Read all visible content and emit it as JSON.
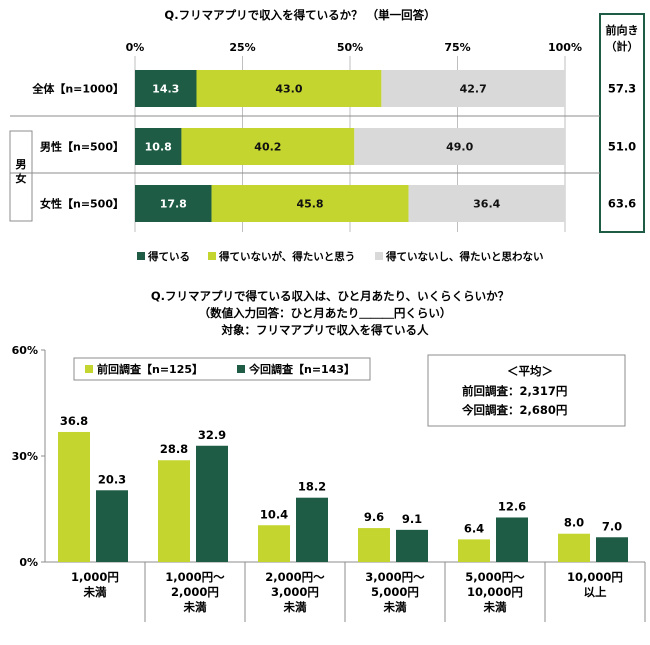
{
  "colors": {
    "dark_green": "#1f5c45",
    "lime": "#c3d52e",
    "light_gray": "#d9d9d9",
    "frame_green": "#1f5c45"
  },
  "top": {
    "question": "Q.フリマアプリで収入を得ているか？ （単一回答）",
    "axis_ticks": [
      "0%",
      "25%",
      "50%",
      "75%",
      "100%"
    ],
    "side_header_line1": "前向き",
    "side_header_line2": "（計）",
    "group_label": "男女",
    "rows": [
      {
        "label": "全体【n=1000】",
        "total": "57.3"
      },
      {
        "label": "男性【n=500】",
        "total": "51.0"
      },
      {
        "label": "女性【n=500】",
        "total": "63.6"
      }
    ],
    "legend": [
      "得ている",
      "得ていないが、得たいと思う",
      "得ていないし、得たいと思わない"
    ]
  },
  "bottom": {
    "title_line1": "Q.フリマアプリで得ている収入は、ひと月あたり、いくらくらいか？",
    "title_line2": "（数値入力回答：ひと月あたり＿＿＿円くらい）",
    "title_line3": "対象：フリマアプリで収入を得ている人",
    "y_ticks": [
      "60%",
      "30%",
      "0%"
    ],
    "legend": [
      "前回調査【n=125】",
      "今回調査【n=143】"
    ],
    "avg_title": "＜平均＞",
    "avg_prev": "前回調査：2,317円",
    "avg_curr": "今回調査：2,680円",
    "categories": [
      [
        "1,000円",
        "未満"
      ],
      [
        "1,000円～",
        "2,000円",
        "未満"
      ],
      [
        "2,000円～",
        "3,000円",
        "未満"
      ],
      [
        "3,000円～",
        "5,000円",
        "未満"
      ],
      [
        "5,000円～",
        "10,000円",
        "未満"
      ],
      [
        "10,000円",
        "以上"
      ]
    ]
  },
  "chart_data": [
    {
      "type": "bar",
      "orientation": "horizontal-stacked",
      "title": "Q.フリマアプリで収入を得ているか？ （単一回答）",
      "categories": [
        "全体【n=1000】",
        "男性【n=500】",
        "女性【n=500】"
      ],
      "xlim": [
        0,
        100
      ],
      "series": [
        {
          "name": "得ている",
          "values": [
            14.3,
            10.8,
            17.8
          ]
        },
        {
          "name": "得ていないが、得たいと思う",
          "values": [
            43.0,
            40.2,
            45.8
          ]
        },
        {
          "name": "得ていないし、得たいと思わない",
          "values": [
            42.7,
            49.0,
            36.4
          ]
        }
      ],
      "legend": "bottom",
      "grid": true
    },
    {
      "type": "bar",
      "orientation": "vertical-grouped",
      "title": "Q.フリマアプリで得ている収入は、ひと月あたり、いくらくらいか？",
      "categories": [
        "1,000円 未満",
        "1,000円～ 2,000円 未満",
        "2,000円～ 3,000円 未満",
        "3,000円～ 5,000円 未満",
        "5,000円～ 10,000円 未満",
        "10,000円 以上"
      ],
      "ylim": [
        0,
        60
      ],
      "series": [
        {
          "name": "前回調査【n=125】",
          "values": [
            36.8,
            28.8,
            10.4,
            9.6,
            6.4,
            8.0
          ]
        },
        {
          "name": "今回調査【n=143】",
          "values": [
            20.3,
            32.9,
            18.2,
            9.1,
            12.6,
            7.0
          ]
        }
      ],
      "legend": "top-left",
      "grid": false
    }
  ]
}
